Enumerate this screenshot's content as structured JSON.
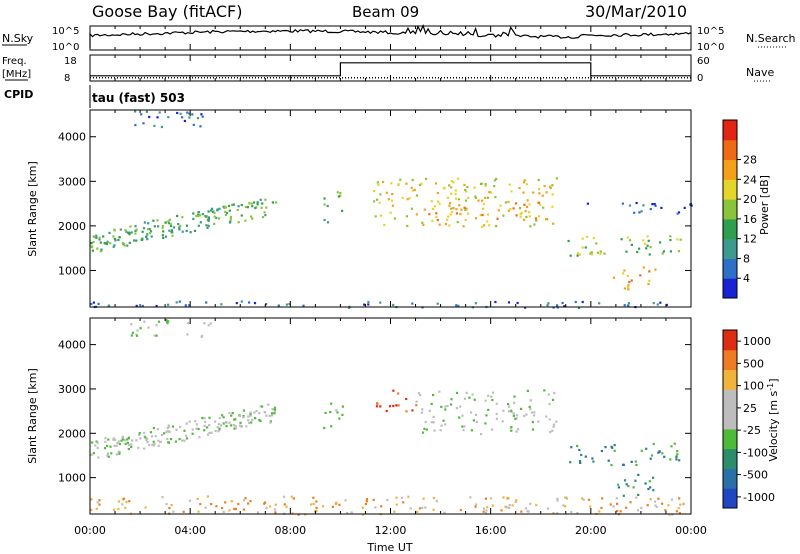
{
  "header": {
    "station": "Goose Bay (fitACF)",
    "beam": "Beam 09",
    "date": "30/Mar/2010"
  },
  "chart_data": [
    {
      "type": "line",
      "panel": "noise",
      "left_label": "N.Sky",
      "right_label": "N.Search",
      "left_ticks": [
        "10^5",
        "10^0"
      ],
      "right_ticks": [
        "10^5",
        "10^0"
      ],
      "description_series": [
        {
          "name": "N.Sky",
          "style": "solid"
        },
        {
          "name": "N.Search",
          "style": "dotted"
        }
      ]
    },
    {
      "type": "line",
      "panel": "frequency",
      "left_label_line1": "Freq.",
      "left_label_line2": "[MHz]",
      "right_label": "Nave",
      "left_ticks": [
        "18",
        "8"
      ],
      "right_ticks": [
        "60",
        "0"
      ],
      "freq_steps": [
        {
          "x": 0,
          "y": 10
        },
        {
          "x": 10,
          "y": 10
        },
        {
          "x": 10,
          "y": 15
        },
        {
          "x": 20,
          "y": 15
        },
        {
          "x": 20,
          "y": 10
        },
        {
          "x": 24,
          "y": 10
        }
      ],
      "nave_level": 10,
      "ylim": [
        8,
        18
      ]
    },
    {
      "type": "text",
      "panel": "cpid",
      "label": "CPID",
      "value": "tau (fast) 503"
    },
    {
      "type": "heatmap",
      "panel": "power",
      "ylabel": "Slant Range [km]",
      "ylim": [
        180,
        4600
      ],
      "yticks": [
        "1000",
        "2000",
        "3000",
        "4000"
      ],
      "colorbar_label": "Power [dB]",
      "colorbar_ticks": [
        "4",
        "8",
        "12",
        "16",
        "20",
        "24",
        "28"
      ],
      "colors": [
        "#1a22d6",
        "#2e6fc7",
        "#3d9a8e",
        "#2f9e4d",
        "#8ac43a",
        "#e5d42a",
        "#f4a01a",
        "#ee6a14",
        "#e22515"
      ],
      "regions": [
        {
          "t0": 0.0,
          "t1": 7.4,
          "r0": 1380,
          "r1": 2750,
          "trend": "rising",
          "level": 3
        },
        {
          "t0": 9.3,
          "t1": 10.1,
          "r0": 2100,
          "r1": 2800,
          "level": 3
        },
        {
          "t0": 11.3,
          "t1": 18.6,
          "r0": 2000,
          "r1": 3100,
          "level": 5
        },
        {
          "t0": 13.5,
          "t1": 18.0,
          "r0": 2150,
          "r1": 2550,
          "level": 6
        },
        {
          "t0": 19.0,
          "t1": 23.6,
          "r0": 1300,
          "r1": 1800,
          "level": 4
        },
        {
          "t0": 20.8,
          "t1": 22.6,
          "r0": 600,
          "r1": 1100,
          "level": 6
        },
        {
          "t0": 1.5,
          "t1": 4.8,
          "r0": 4200,
          "r1": 4600,
          "level": 1
        },
        {
          "t0": 19.8,
          "t1": 24.0,
          "r0": 2300,
          "r1": 2550,
          "level": 1
        },
        {
          "t0": 0.0,
          "t1": 24.0,
          "r0": 180,
          "r1": 330,
          "level": 1
        }
      ]
    },
    {
      "type": "heatmap",
      "panel": "velocity",
      "ylabel": "Slant Range [km]",
      "ylim": [
        180,
        4600
      ],
      "yticks": [
        "1000",
        "2000",
        "3000",
        "4000"
      ],
      "colorbar_label": "Velocity [m s",
      "colorbar_label_sup": "-1",
      "colorbar_label_close": "]",
      "colorbar_ticks": [
        "1000",
        "500",
        "100",
        "25",
        "-25",
        "-100",
        "-500",
        "-1000"
      ],
      "colors": [
        "#2146c4",
        "#2a6fa7",
        "#2d8c6a",
        "#4fba3a",
        "#bdbdbd",
        "#bdbdbd",
        "#f0b43a",
        "#ef7b22",
        "#dd2d12"
      ],
      "regions": [
        {
          "t0": 0.0,
          "t1": 7.4,
          "r0": 1380,
          "r1": 2750,
          "trend": "rising",
          "level": 4
        },
        {
          "t0": 9.3,
          "t1": 10.1,
          "r0": 2100,
          "r1": 2800,
          "level": 3
        },
        {
          "t0": 11.3,
          "t1": 13.0,
          "r0": 2500,
          "r1": 3000,
          "level": 8
        },
        {
          "t0": 13.0,
          "t1": 18.6,
          "r0": 2000,
          "r1": 3000,
          "level": 4
        },
        {
          "t0": 19.0,
          "t1": 23.6,
          "r0": 1300,
          "r1": 1800,
          "level": 2
        },
        {
          "t0": 20.8,
          "t1": 22.6,
          "r0": 600,
          "r1": 1100,
          "level": 2
        },
        {
          "t0": 1.5,
          "t1": 4.8,
          "r0": 4200,
          "r1": 4600,
          "level": 4
        },
        {
          "t0": 0.0,
          "t1": 24.0,
          "r0": 180,
          "r1": 600,
          "level": 6
        }
      ]
    }
  ],
  "x_axis": {
    "label": "Time UT",
    "xlim": [
      0,
      24
    ],
    "ticks": [
      {
        "t": 0,
        "label": "00:00"
      },
      {
        "t": 4,
        "label": "04:00"
      },
      {
        "t": 8,
        "label": "08:00"
      },
      {
        "t": 12,
        "label": "12:00"
      },
      {
        "t": 16,
        "label": "16:00"
      },
      {
        "t": 20,
        "label": "20:00"
      },
      {
        "t": 24,
        "label": "00:00"
      }
    ]
  }
}
